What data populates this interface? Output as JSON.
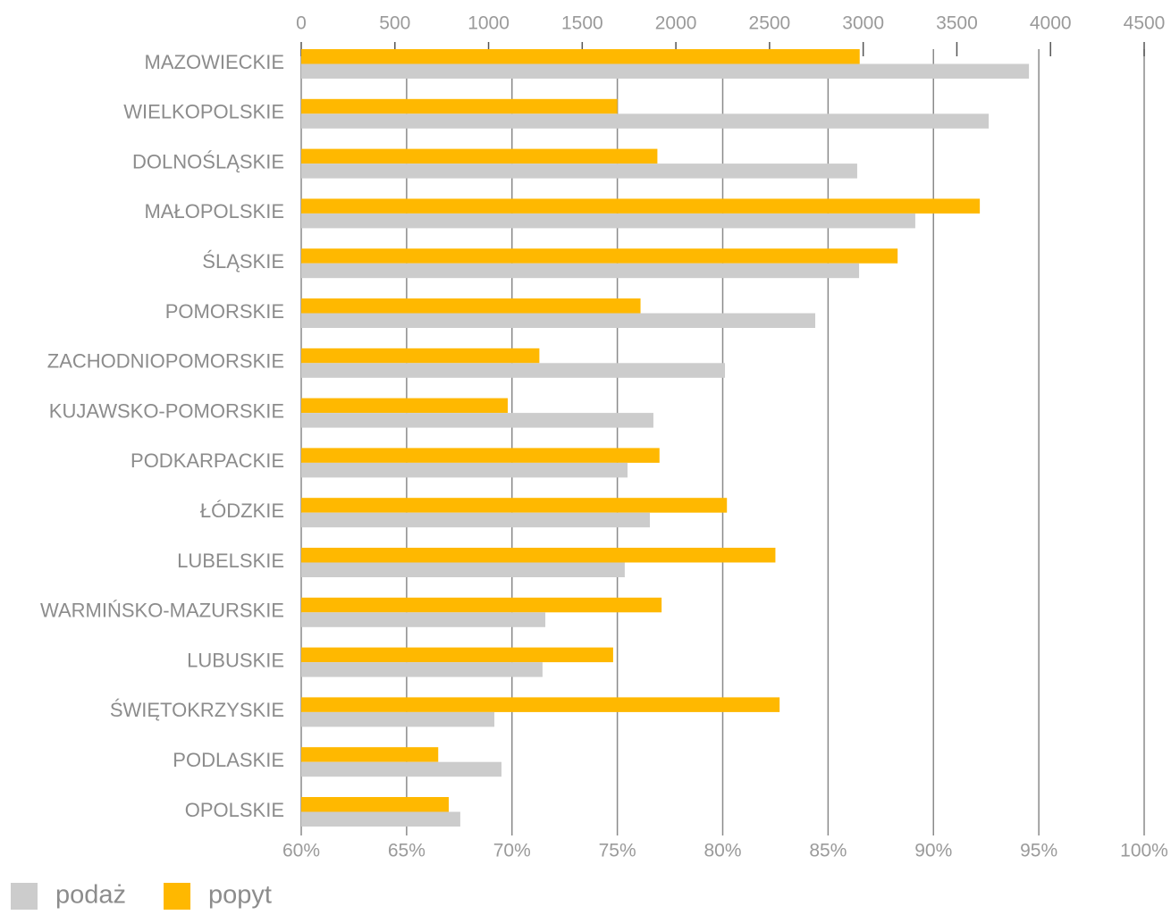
{
  "chart_data": {
    "type": "bar",
    "orientation": "horizontal",
    "categories": [
      "MAZOWIECKIE",
      "WIELKOPOLSKIE",
      "DOLNOŚLĄSKIE",
      "MAŁOPOLSKIE",
      "ŚLĄSKIE",
      "POMORSKIE",
      "ZACHODNIOPOMORSKIE",
      "KUJAWSKO-POMORSKIE",
      "PODKARPACKIE",
      "ŁÓDZKIE",
      "LUBELSKIE",
      "WARMIŃSKO-MAZURSKIE",
      "LUBUSKIE",
      "ŚWIĘTOKRZYSKIE",
      "PODLASKIE",
      "OPOLSKIE"
    ],
    "series": [
      {
        "name": "popyt",
        "color": "#ffb800",
        "axis": "x2",
        "values": [
          86.5,
          75.0,
          76.9,
          92.2,
          88.3,
          76.1,
          71.3,
          69.8,
          77.0,
          80.2,
          82.5,
          77.1,
          74.8,
          82.7,
          66.5,
          67.0
        ]
      },
      {
        "name": "podaż",
        "color": "#cccccc",
        "axis": "x",
        "values": [
          3885,
          3670,
          2968,
          3278,
          2978,
          2744,
          2262,
          1880,
          1742,
          1861,
          1727,
          1303,
          1288,
          1031,
          1069,
          849
        ]
      }
    ],
    "xlim": [
      0,
      4500
    ],
    "xticks": [
      0,
      500,
      1000,
      1500,
      2000,
      2500,
      3000,
      3500,
      4000,
      4500
    ],
    "x2lim": [
      60,
      100
    ],
    "x2ticks": [
      {
        "value": 60,
        "label": "60%"
      },
      {
        "value": 65,
        "label": "65%"
      },
      {
        "value": 70,
        "label": "70%"
      },
      {
        "value": 75,
        "label": "75%"
      },
      {
        "value": 80,
        "label": "80%"
      },
      {
        "value": 85,
        "label": "85%"
      },
      {
        "value": 90,
        "label": "90%"
      },
      {
        "value": 95,
        "label": "95%"
      },
      {
        "value": 100,
        "label": "100%"
      }
    ],
    "grid": true,
    "legend": "bottom-left"
  }
}
